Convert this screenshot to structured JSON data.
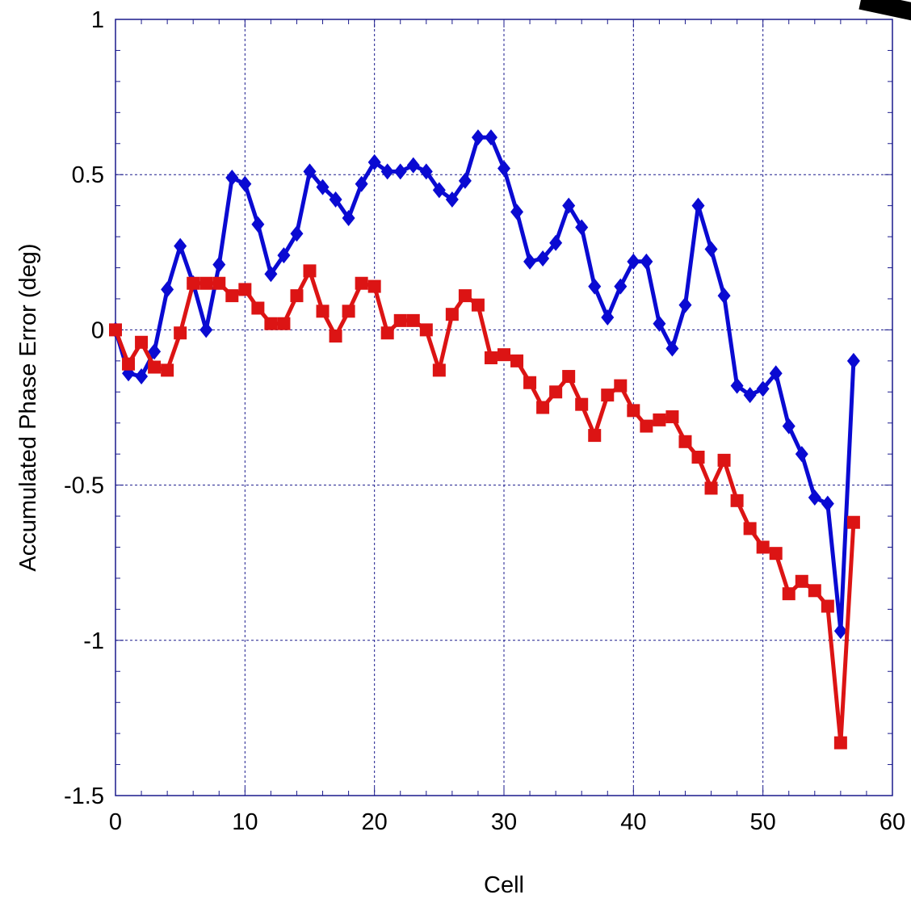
{
  "chart_data": {
    "type": "line",
    "title": "",
    "xlabel": "Cell",
    "ylabel": "Accumulated Phase Error (deg)",
    "xlim": [
      0,
      60
    ],
    "ylim": [
      -1.5,
      1
    ],
    "xticks": [
      0,
      10,
      20,
      30,
      40,
      50,
      60
    ],
    "xtick_labels": [
      "0",
      "10",
      "20",
      "30",
      "40",
      "50",
      "60"
    ],
    "yticks": [
      -1.5,
      -1,
      -0.5,
      0,
      0.5,
      1
    ],
    "ytick_labels": [
      "-1.5",
      "-1",
      "-0.5",
      "0",
      "0.5",
      "1"
    ],
    "grid": true,
    "x": [
      0,
      1,
      2,
      3,
      4,
      5,
      6,
      7,
      8,
      9,
      10,
      11,
      12,
      13,
      14,
      15,
      16,
      17,
      18,
      19,
      20,
      21,
      22,
      23,
      24,
      25,
      26,
      27,
      28,
      29,
      30,
      31,
      32,
      33,
      34,
      35,
      36,
      37,
      38,
      39,
      40,
      41,
      42,
      43,
      44,
      45,
      46,
      47,
      48,
      49,
      50,
      51,
      52,
      53,
      54,
      55,
      56,
      57
    ],
    "series": [
      {
        "marker": "diamond",
        "color": "#0a0ad2",
        "values": [
          0.0,
          -0.14,
          -0.15,
          -0.07,
          0.13,
          0.27,
          0.15,
          0.0,
          0.21,
          0.49,
          0.47,
          0.34,
          0.18,
          0.24,
          0.31,
          0.51,
          0.46,
          0.42,
          0.36,
          0.47,
          0.54,
          0.51,
          0.51,
          0.53,
          0.51,
          0.45,
          0.42,
          0.48,
          0.62,
          0.62,
          0.52,
          0.38,
          0.22,
          0.23,
          0.28,
          0.4,
          0.33,
          0.14,
          0.04,
          0.14,
          0.22,
          0.22,
          0.02,
          -0.06,
          0.08,
          0.4,
          0.26,
          0.11,
          -0.18,
          -0.21,
          -0.19,
          -0.14,
          -0.31,
          -0.4,
          -0.54,
          -0.56,
          -0.97,
          -0.1
        ]
      },
      {
        "marker": "square",
        "color": "#dc1414",
        "values": [
          0.0,
          -0.11,
          -0.04,
          -0.12,
          -0.13,
          -0.01,
          0.15,
          0.15,
          0.15,
          0.11,
          0.13,
          0.07,
          0.02,
          0.02,
          0.11,
          0.19,
          0.06,
          -0.02,
          0.06,
          0.15,
          0.14,
          -0.01,
          0.03,
          0.03,
          0.0,
          -0.13,
          0.05,
          0.11,
          0.08,
          -0.09,
          -0.08,
          -0.1,
          -0.17,
          -0.25,
          -0.2,
          -0.15,
          -0.24,
          -0.34,
          -0.21,
          -0.18,
          -0.26,
          -0.31,
          -0.29,
          -0.28,
          -0.36,
          -0.41,
          -0.51,
          -0.42,
          -0.55,
          -0.64,
          -0.7,
          -0.72,
          -0.85,
          -0.81,
          -0.84,
          -0.89,
          -1.33,
          -0.62
        ]
      }
    ]
  }
}
